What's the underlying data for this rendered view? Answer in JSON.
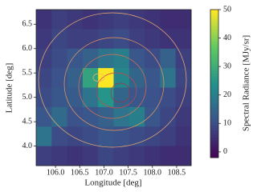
{
  "chart_data": {
    "type": "heatmap",
    "colormap": "viridis",
    "xlabel": "Longitude [deg]",
    "ylabel": "Latitude [deg]",
    "colorbar_label": "Spectral Radiance [MJy/sr]",
    "xlim": [
      105.6,
      108.8
    ],
    "ylim": [
      3.6,
      6.8
    ],
    "clim": [
      -2,
      50
    ],
    "xticks": [
      {
        "value": 106,
        "label": "106.0"
      },
      106.5,
      {
        "value": 107,
        "label": "107.0"
      },
      107.5,
      {
        "value": 108,
        "label": "108.0"
      },
      108.5
    ],
    "yticks": [
      {
        "value": 4,
        "label": "4.0"
      },
      4.5,
      {
        "value": 5,
        "label": "5.0"
      },
      5.5,
      {
        "value": 6,
        "label": "6.0"
      },
      6.5
    ],
    "cticks": [
      0,
      10,
      20,
      30,
      40,
      50
    ],
    "z": [
      [
        6,
        8,
        7,
        6,
        7,
        8,
        7,
        6,
        5,
        5
      ],
      [
        7,
        9,
        8,
        8,
        9,
        10,
        8,
        7,
        6,
        6
      ],
      [
        8,
        10,
        12,
        14,
        18,
        20,
        12,
        10,
        14,
        8
      ],
      [
        9,
        11,
        14,
        28,
        50,
        22,
        15,
        12,
        18,
        9
      ],
      [
        10,
        12,
        13,
        18,
        25,
        15,
        12,
        11,
        10,
        8
      ],
      [
        12,
        16,
        11,
        12,
        14,
        18,
        20,
        12,
        9,
        7
      ],
      [
        18,
        10,
        9,
        10,
        12,
        11,
        10,
        9,
        8,
        6
      ],
      [
        8,
        7,
        6,
        7,
        9,
        8,
        7,
        6,
        5,
        5
      ]
    ]
  }
}
